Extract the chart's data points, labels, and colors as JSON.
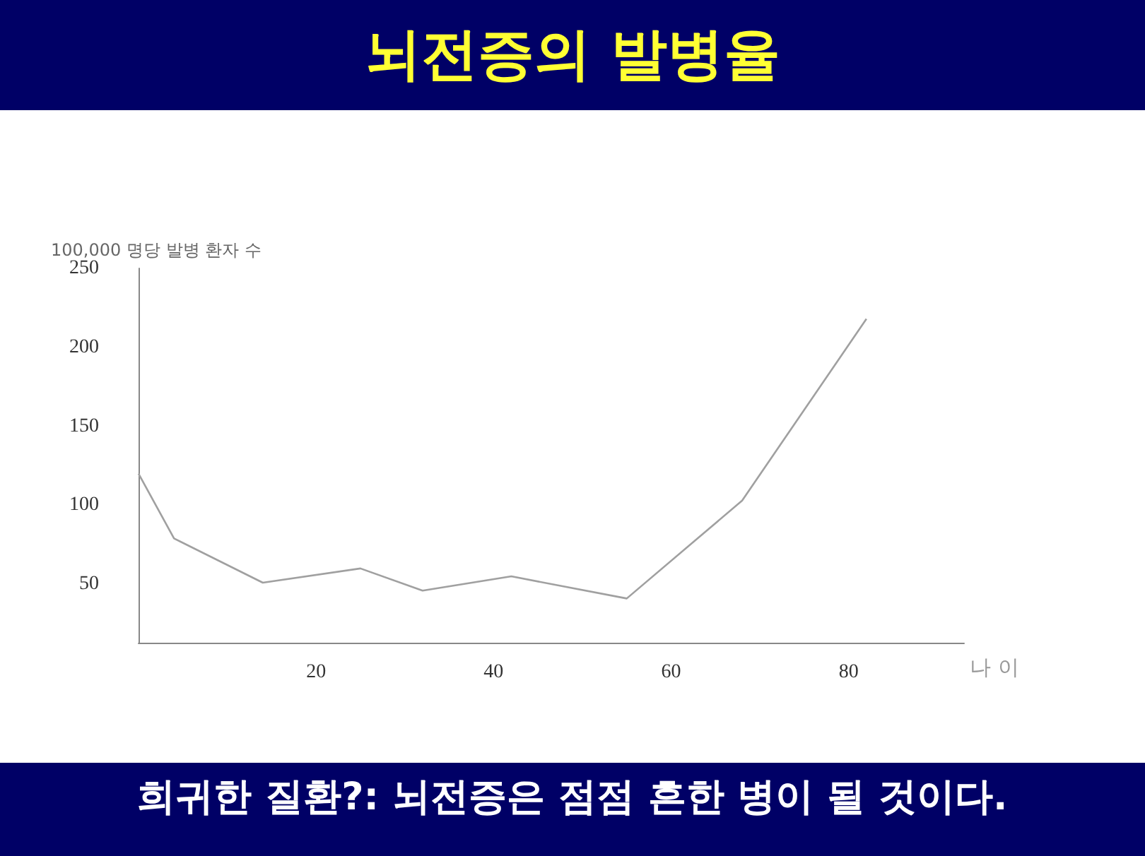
{
  "chart_data": {
    "type": "line",
    "title": "뇌전증의 발병율",
    "ylabel": "100,000 명당 발병 환자 수",
    "xlabel": "나 이",
    "annotations": [
      "희귀한 질환?: 뇌전증은 점점 흔한 병이 될 것이다."
    ],
    "x": [
      0,
      4,
      14,
      25,
      32,
      42,
      55,
      68,
      82
    ],
    "series": [
      {
        "color": "#a0a0a0",
        "values": [
          120,
          79,
          51,
          60,
          46,
          55,
          41,
          103,
          218
        ]
      }
    ],
    "xlim": [
      0,
      93
    ],
    "xticks": [
      20,
      40,
      60,
      80
    ],
    "ylim": [
      13,
      250
    ],
    "yticks": [
      50,
      100,
      150,
      200,
      250
    ],
    "grid": false,
    "marker": "none",
    "line_style": "solid"
  }
}
